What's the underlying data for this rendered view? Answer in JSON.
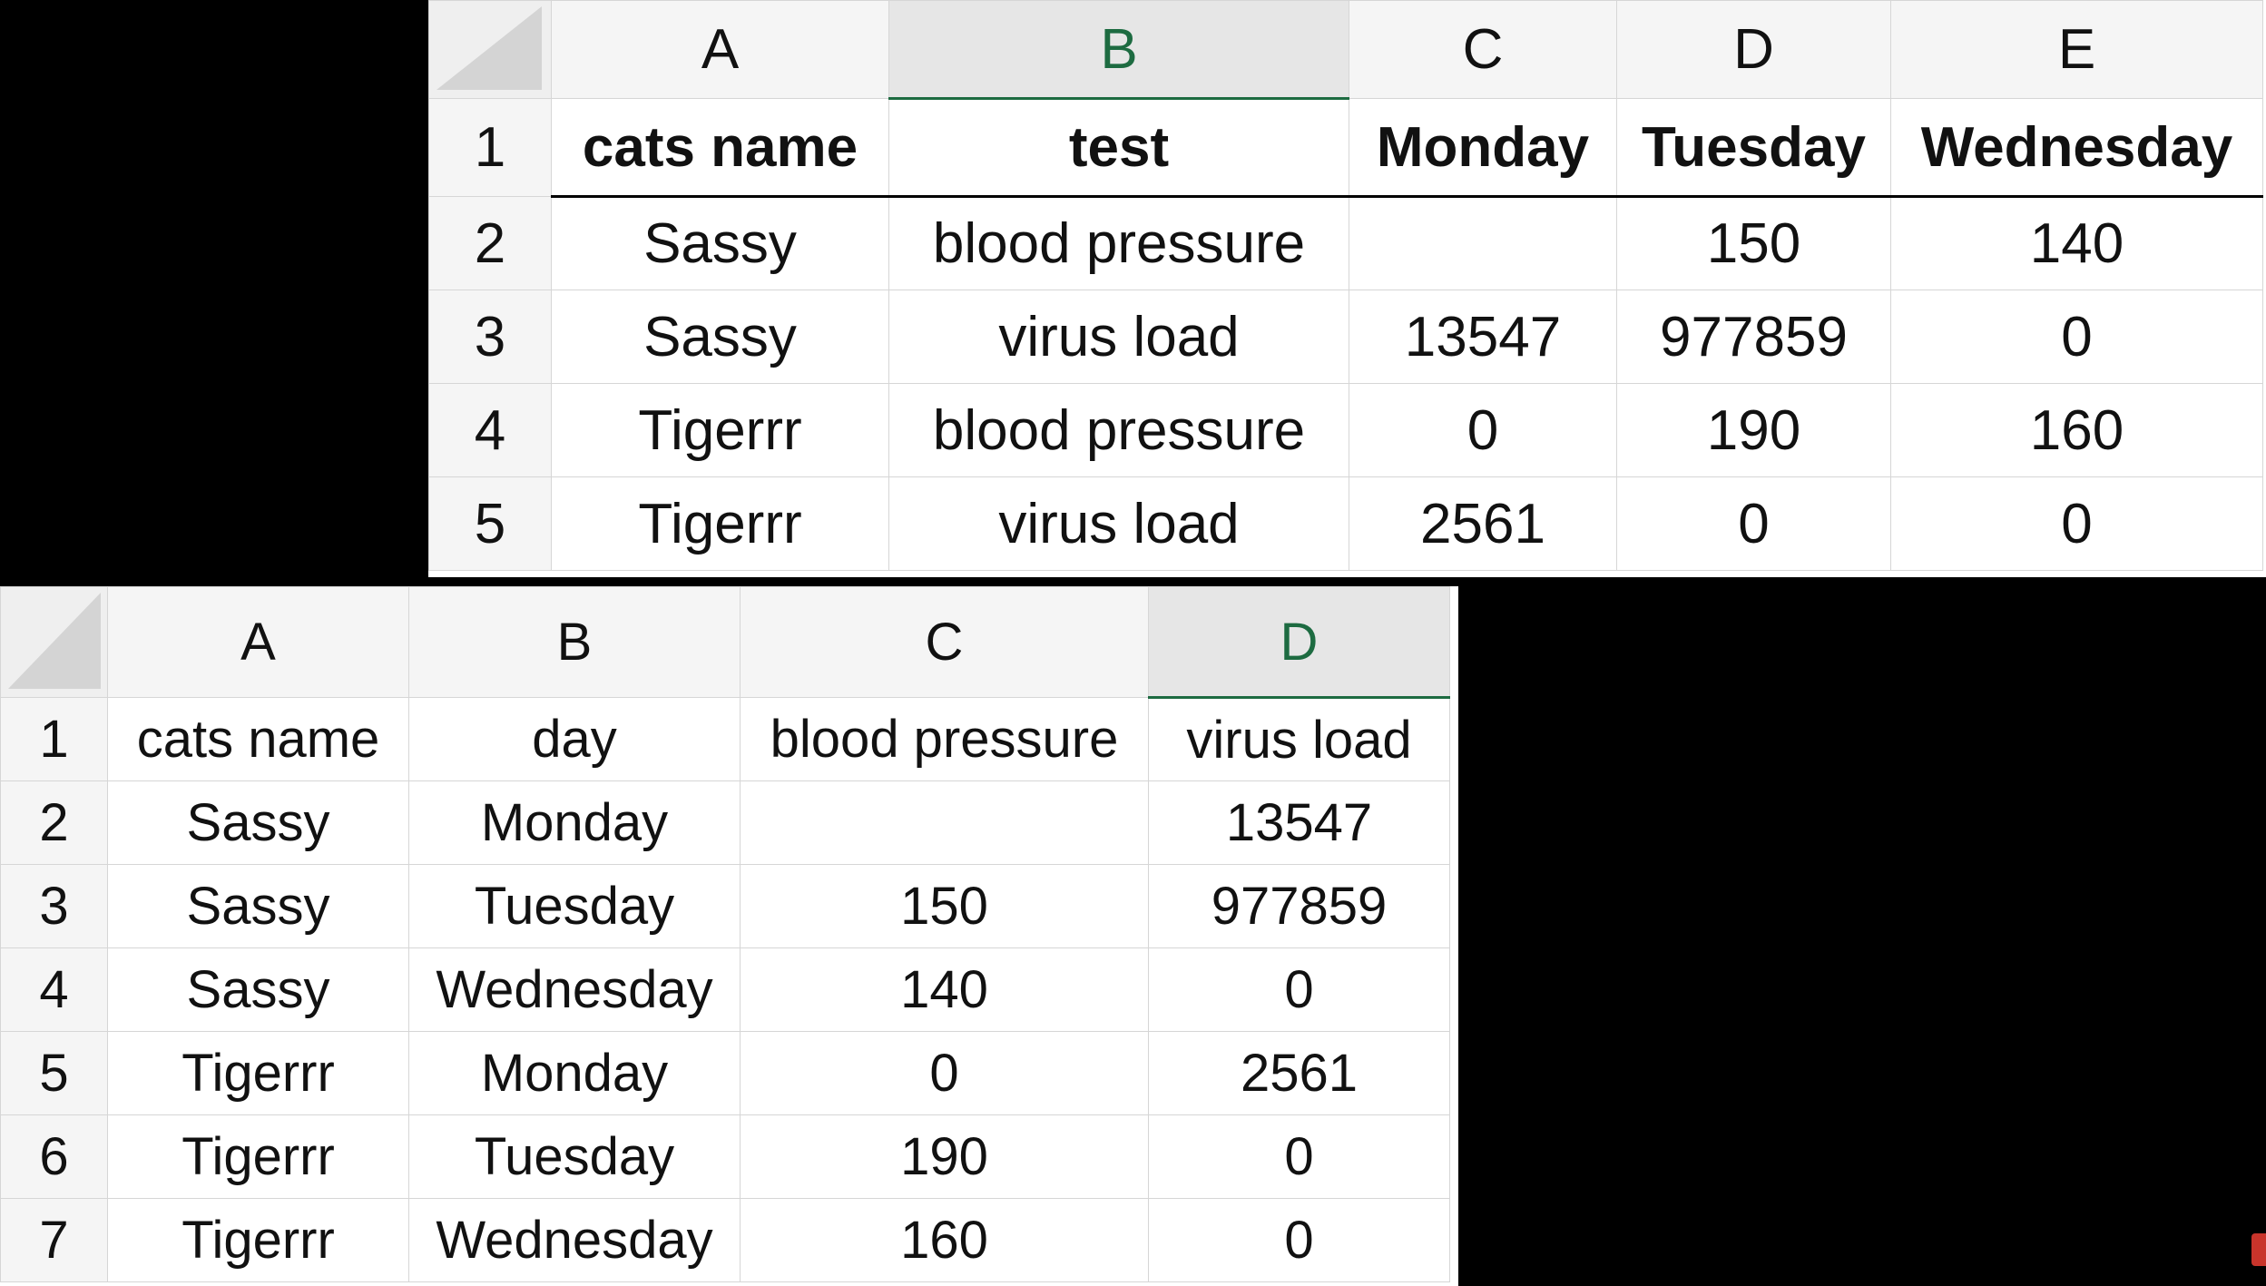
{
  "top_sheet": {
    "active_column": "B",
    "columns": [
      "A",
      "B",
      "C",
      "D",
      "E"
    ],
    "row_numbers": [
      "1",
      "2",
      "3",
      "4",
      "5"
    ],
    "rows": [
      [
        "cats name",
        "test",
        "Monday",
        "Tuesday",
        "Wednesday"
      ],
      [
        "Sassy",
        "blood pressure",
        "",
        "150",
        "140"
      ],
      [
        "Sassy",
        "virus load",
        "13547",
        "977859",
        "0"
      ],
      [
        "Tigerrr",
        "blood pressure",
        "0",
        "190",
        "160"
      ],
      [
        "Tigerrr",
        "virus load",
        "2561",
        "0",
        "0"
      ]
    ]
  },
  "bottom_sheet": {
    "active_column": "D",
    "columns": [
      "A",
      "B",
      "C",
      "D"
    ],
    "row_numbers": [
      "1",
      "2",
      "3",
      "4",
      "5",
      "6",
      "7"
    ],
    "rows": [
      [
        "cats name",
        "day",
        "blood pressure",
        "virus load"
      ],
      [
        "Sassy",
        "Monday",
        "",
        "13547"
      ],
      [
        "Sassy",
        "Tuesday",
        "150",
        "977859"
      ],
      [
        "Sassy",
        "Wednesday",
        "140",
        "0"
      ],
      [
        "Tigerrr",
        "Monday",
        "0",
        "2561"
      ],
      [
        "Tigerrr",
        "Tuesday",
        "190",
        "0"
      ],
      [
        "Tigerrr",
        "Wednesday",
        "160",
        "0"
      ]
    ]
  },
  "colors": {
    "accent": "#1d6b41",
    "header_bg": "#f5f5f5",
    "grid": "#d6d6d6"
  }
}
